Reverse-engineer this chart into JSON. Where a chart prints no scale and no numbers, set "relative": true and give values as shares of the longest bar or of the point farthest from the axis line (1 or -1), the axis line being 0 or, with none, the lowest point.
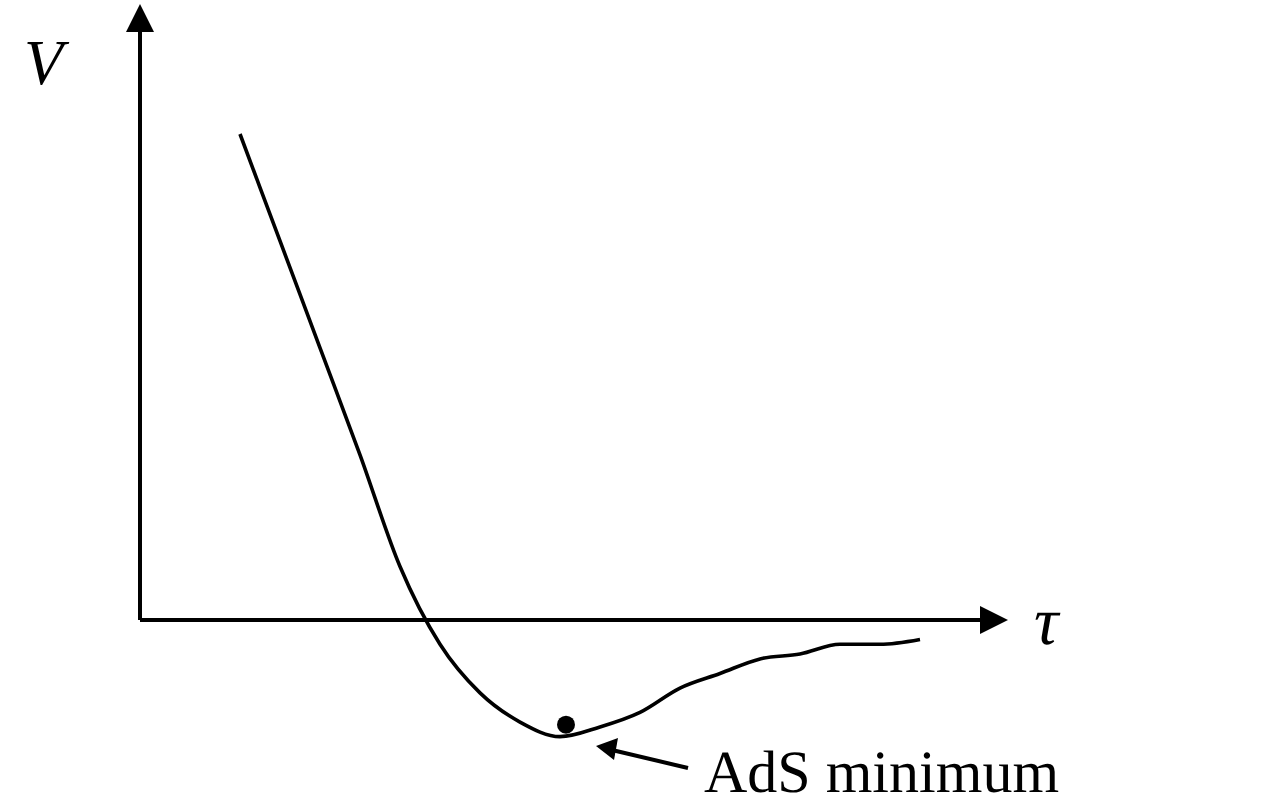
{
  "chart_data": {
    "type": "line",
    "relative": true,
    "xlabel": "τ",
    "ylabel": "V",
    "categories": [
      null,
      null,
      null,
      null,
      null,
      null,
      null,
      null,
      null,
      null,
      null,
      null,
      null,
      null,
      null,
      null,
      null,
      null
    ],
    "series": [
      {
        "color": "#000000",
        "values": [
          1,
          0.78,
          0.56,
          0.34,
          0.11,
          -0.05,
          -0.15,
          -0.21,
          -0.24,
          -0.22,
          -0.19,
          -0.14,
          -0.11,
          -0.08,
          -0.07,
          -0.05,
          -0.05,
          -0.04
        ]
      }
    ],
    "annotations": [
      "AdS minimum"
    ]
  }
}
